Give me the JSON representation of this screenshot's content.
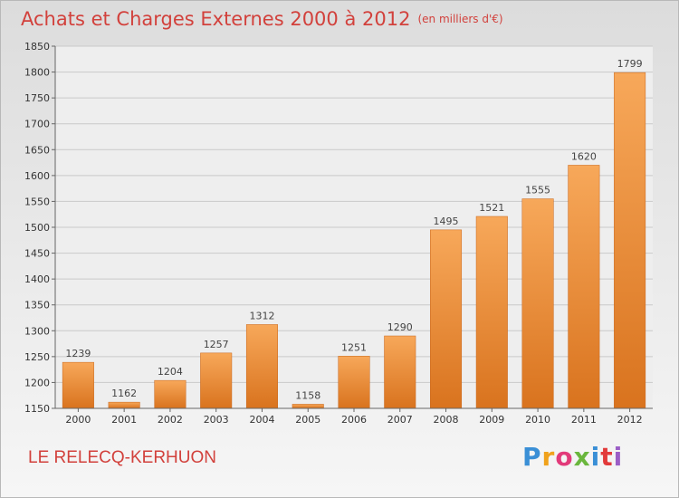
{
  "title": "Achats et Charges Externes 2000 à 2012",
  "unit_note": "(en milliers d'€)",
  "commune": "LE RELECQ-KERHUON",
  "logo": {
    "letters": [
      "P",
      "r",
      "o",
      "x",
      "i",
      "t",
      "i"
    ],
    "colors": [
      "#3a8fd6",
      "#f0a21c",
      "#e23a7a",
      "#6ab63d",
      "#3a8fd6",
      "#e23a3a",
      "#9b5ec6"
    ]
  },
  "colors": {
    "bar_top": "#f7a85a",
    "bar_bottom": "#d9731e",
    "title": "#d2413c"
  },
  "chart_data": {
    "type": "bar",
    "categories": [
      "2000",
      "2001",
      "2002",
      "2003",
      "2004",
      "2005",
      "2006",
      "2007",
      "2008",
      "2009",
      "2010",
      "2011",
      "2012"
    ],
    "values": [
      1239,
      1162,
      1204,
      1257,
      1312,
      1158,
      1251,
      1290,
      1495,
      1521,
      1555,
      1620,
      1799
    ],
    "ylim": [
      1150,
      1850
    ],
    "yticks": [
      1150,
      1200,
      1250,
      1300,
      1350,
      1400,
      1450,
      1500,
      1550,
      1600,
      1650,
      1700,
      1750,
      1800,
      1850
    ],
    "grid": true,
    "xlabel": "",
    "ylabel": ""
  }
}
